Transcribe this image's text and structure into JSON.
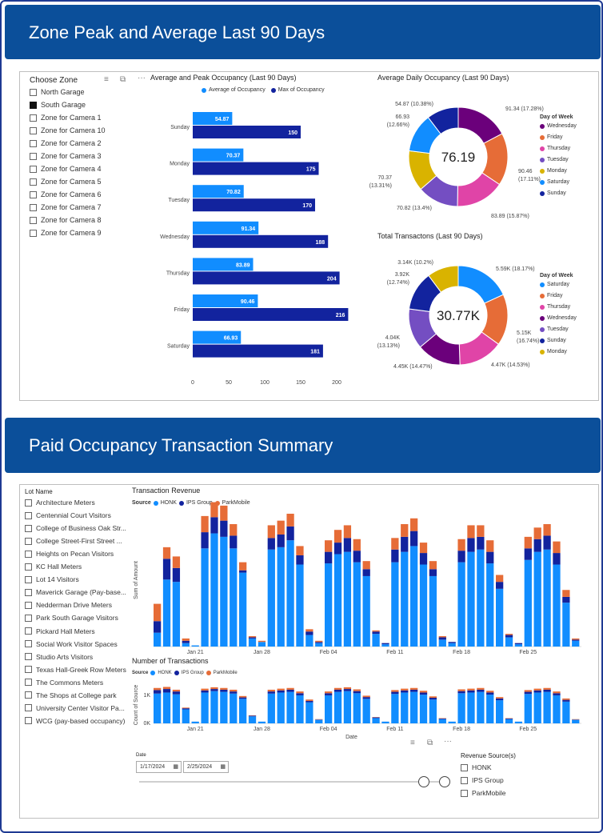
{
  "colors": {
    "header_bg": "#0b4f9a",
    "avg_bar": "#118dff",
    "max_bar": "#12239e",
    "honk": "#118dff",
    "ips": "#12239e",
    "parkmobile": "#e66c37"
  },
  "panel1": {
    "title": "Zone Peak and Average Last 90 Days",
    "zone_slicer": {
      "title": "Choose Zone",
      "items": [
        {
          "label": "North Garage",
          "checked": false
        },
        {
          "label": "South Garage",
          "checked": true
        },
        {
          "label": "Zone for Camera 1",
          "checked": false
        },
        {
          "label": "Zone for Camera 10",
          "checked": false
        },
        {
          "label": "Zone for Camera 2",
          "checked": false
        },
        {
          "label": "Zone for Camera 3",
          "checked": false
        },
        {
          "label": "Zone for Camera 4",
          "checked": false
        },
        {
          "label": "Zone for Camera 5",
          "checked": false
        },
        {
          "label": "Zone for Camera 6",
          "checked": false
        },
        {
          "label": "Zone for Camera 7",
          "checked": false
        },
        {
          "label": "Zone for Camera 8",
          "checked": false
        },
        {
          "label": "Zone for Camera 9",
          "checked": false
        }
      ]
    },
    "bar_chart": {
      "title": "Average and Peak Occupancy (Last 90 Days)",
      "legend": [
        "Average of Occupancy",
        "Max of Occupancy"
      ],
      "x_ticks": [
        "0",
        "50",
        "100",
        "150",
        "200"
      ]
    },
    "donut_occ": {
      "title": "Average Daily Occupancy (Last 90 Days)",
      "center": "76.19",
      "legend_title": "Day of Week",
      "legend": [
        {
          "label": "Wednesday",
          "color": "#6b007b"
        },
        {
          "label": "Friday",
          "color": "#e66c37"
        },
        {
          "label": "Thursday",
          "color": "#e044a7"
        },
        {
          "label": "Tuesday",
          "color": "#744ec2"
        },
        {
          "label": "Monday",
          "color": "#d9b300"
        },
        {
          "label": "Saturday",
          "color": "#118dff"
        },
        {
          "label": "Sunday",
          "color": "#12239e"
        }
      ],
      "labels": [
        "91.34 (17.28%)",
        "90.46",
        "(17.11%)",
        "83.89 (15.87%)",
        "70.82 (13.4%)",
        "70.37",
        "(13.31%)",
        "66.93",
        "(12.66%)",
        "54.87 (10.38%)"
      ]
    },
    "donut_tx": {
      "title": "Total Transactons (Last 90 Days)",
      "center": "30.77K",
      "legend_title": "Day of Week",
      "legend": [
        {
          "label": "Saturday",
          "color": "#118dff"
        },
        {
          "label": "Friday",
          "color": "#e66c37"
        },
        {
          "label": "Thursday",
          "color": "#e044a7"
        },
        {
          "label": "Wednesday",
          "color": "#6b007b"
        },
        {
          "label": "Tuesday",
          "color": "#744ec2"
        },
        {
          "label": "Sunday",
          "color": "#12239e"
        },
        {
          "label": "Monday",
          "color": "#d9b300"
        }
      ],
      "labels": [
        "5.59K (18.17%)",
        "5.15K",
        "(16.74%)",
        "4.47K (14.53%)",
        "4.45K (14.47%)",
        "4.04K",
        "(13.13%)",
        "3.92K",
        "(12.74%)",
        "3.14K (10.2%)"
      ]
    }
  },
  "panel2": {
    "title": "Paid Occupancy Transaction Summary",
    "lot_slicer": {
      "title": "Lot Name",
      "items": [
        "Architecture Meters",
        "Centennial Court Visitors",
        "College of Business Oak Str...",
        "College Street-First Street ...",
        "Heights on Pecan Visitors",
        "KC Hall Meters",
        "Lot 14 Visitors",
        "Maverick Garage (Pay-base...",
        "Nedderman Drive Meters",
        "Park South Garage Visitors",
        "Pickard Hall Meters",
        "Social Work Visitor Spaces",
        "Studio Arts Visitors",
        "Texas Hall-Greek Row Meters",
        "The Commons Meters",
        "The Shops at College park",
        "University Center Visitor Pa...",
        "WCG (pay-based occupancy)"
      ]
    },
    "revenue_chart": {
      "title": "Transaction Revenue",
      "legend_label": "Source",
      "legend": [
        "HONK",
        "IPS Group",
        "ParkMobile"
      ],
      "ylabel": "Sum of Amount",
      "x_ticks": [
        "Jan 21",
        "Jan 28",
        "Feb 04",
        "Feb 11",
        "Feb 18",
        "Feb 25"
      ]
    },
    "tx_chart": {
      "title": "Number of Transactions",
      "legend_label": "Source",
      "legend": [
        "HONK",
        "IPS Group",
        "ParkMobile"
      ],
      "ylabel": "Count of Source",
      "y_ticks": [
        "1K",
        "0K"
      ],
      "xlabel": "Date",
      "x_ticks": [
        "Jan 21",
        "Jan 28",
        "Feb 04",
        "Feb 11",
        "Feb 18",
        "Feb 25"
      ]
    },
    "date_slicer": {
      "label": "Date",
      "start": "1/17/2024",
      "end": "2/25/2024"
    },
    "revenue_source": {
      "title": "Revenue Source(s)",
      "items": [
        "HONK",
        "IPS Group",
        "ParkMobile"
      ]
    }
  },
  "chart_data": [
    {
      "type": "bar",
      "orientation": "horizontal",
      "title": "Average and Peak Occupancy (Last 90 Days)",
      "categories": [
        "Sunday",
        "Monday",
        "Tuesday",
        "Wednesday",
        "Thursday",
        "Friday",
        "Saturday"
      ],
      "series": [
        {
          "name": "Average of Occupancy",
          "values": [
            54.87,
            70.37,
            70.82,
            91.34,
            83.89,
            90.46,
            66.93
          ]
        },
        {
          "name": "Max of Occupancy",
          "values": [
            150,
            175,
            170,
            188,
            204,
            216,
            181
          ]
        }
      ],
      "xlim": [
        0,
        220
      ]
    },
    {
      "type": "pie",
      "title": "Average Daily Occupancy (Last 90 Days)",
      "categories": [
        "Wednesday",
        "Friday",
        "Thursday",
        "Tuesday",
        "Monday",
        "Saturday",
        "Sunday"
      ],
      "values": [
        91.34,
        90.46,
        83.89,
        70.82,
        70.37,
        66.93,
        54.87
      ]
    },
    {
      "type": "pie",
      "title": "Total Transactons (Last 90 Days)",
      "categories": [
        "Saturday",
        "Friday",
        "Thursday",
        "Wednesday",
        "Tuesday",
        "Sunday",
        "Monday"
      ],
      "values": [
        5590,
        5150,
        4470,
        4450,
        4040,
        3920,
        3140
      ]
    },
    {
      "type": "bar",
      "stacked": true,
      "title": "Transaction Revenue",
      "ylabel": "Sum of Amount",
      "x_range": [
        "2024-01-17",
        "2024-02-25"
      ],
      "series": [
        {
          "name": "HONK",
          "values": [
            12,
            58,
            56,
            3,
            1,
            85,
            98,
            95,
            85,
            64,
            7,
            4,
            84,
            86,
            92,
            71,
            10,
            3,
            72,
            80,
            82,
            73,
            61,
            11,
            2,
            73,
            82,
            87,
            71,
            61,
            6,
            3,
            73,
            82,
            84,
            72,
            50,
            8,
            2,
            75,
            82,
            84,
            71,
            38,
            5
          ]
        },
        {
          "name": "IPS Group",
          "values": [
            10,
            18,
            12,
            2,
            0,
            14,
            14,
            14,
            11,
            2,
            1,
            0,
            10,
            11,
            12,
            8,
            3,
            1,
            10,
            10,
            12,
            10,
            6,
            2,
            1,
            11,
            13,
            13,
            10,
            6,
            2,
            1,
            10,
            12,
            11,
            10,
            6,
            2,
            1,
            10,
            11,
            12,
            10,
            5,
            1
          ]
        },
        {
          "name": "ParkMobile",
          "values": [
            15,
            10,
            10,
            2,
            0,
            14,
            13,
            13,
            10,
            7,
            1,
            1,
            11,
            12,
            11,
            8,
            2,
            1,
            10,
            11,
            11,
            10,
            7,
            1,
            0,
            10,
            11,
            11,
            9,
            7,
            1,
            0,
            10,
            11,
            10,
            10,
            6,
            1,
            0,
            10,
            10,
            10,
            10,
            6,
            1
          ]
        }
      ]
    },
    {
      "type": "bar",
      "stacked": true,
      "title": "Number of Transactions",
      "xlabel": "Date",
      "ylabel": "Count of Source",
      "x_range": [
        "2024-01-17",
        "2024-02-25"
      ],
      "series": [
        {
          "name": "HONK",
          "values": [
            0.85,
            0.88,
            0.83,
            0.4,
            0.05,
            0.88,
            0.92,
            0.9,
            0.85,
            0.7,
            0.2,
            0.05,
            0.85,
            0.88,
            0.9,
            0.8,
            0.6,
            0.1,
            0.8,
            0.9,
            0.92,
            0.86,
            0.7,
            0.15,
            0.05,
            0.84,
            0.88,
            0.9,
            0.82,
            0.68,
            0.12,
            0.05,
            0.86,
            0.88,
            0.9,
            0.82,
            0.66,
            0.12,
            0.05,
            0.84,
            0.88,
            0.9,
            0.8,
            0.62,
            0.1
          ]
        },
        {
          "name": "IPS Group",
          "values": [
            0.1,
            0.1,
            0.08,
            0.03,
            0.0,
            0.06,
            0.06,
            0.06,
            0.06,
            0.04,
            0.02,
            0.0,
            0.06,
            0.06,
            0.06,
            0.06,
            0.04,
            0.01,
            0.06,
            0.06,
            0.06,
            0.06,
            0.05,
            0.02,
            0.0,
            0.06,
            0.06,
            0.06,
            0.06,
            0.05,
            0.02,
            0.0,
            0.06,
            0.06,
            0.06,
            0.06,
            0.05,
            0.02,
            0.0,
            0.06,
            0.06,
            0.06,
            0.06,
            0.05,
            0.01
          ]
        },
        {
          "name": "ParkMobile",
          "values": [
            0.06,
            0.06,
            0.05,
            0.02,
            0.0,
            0.05,
            0.05,
            0.05,
            0.05,
            0.04,
            0.01,
            0.0,
            0.05,
            0.05,
            0.05,
            0.05,
            0.04,
            0.01,
            0.05,
            0.05,
            0.05,
            0.05,
            0.04,
            0.01,
            0.0,
            0.05,
            0.05,
            0.05,
            0.05,
            0.04,
            0.01,
            0.0,
            0.05,
            0.05,
            0.05,
            0.05,
            0.04,
            0.01,
            0.0,
            0.05,
            0.05,
            0.05,
            0.05,
            0.04,
            0.01
          ]
        }
      ]
    }
  ]
}
